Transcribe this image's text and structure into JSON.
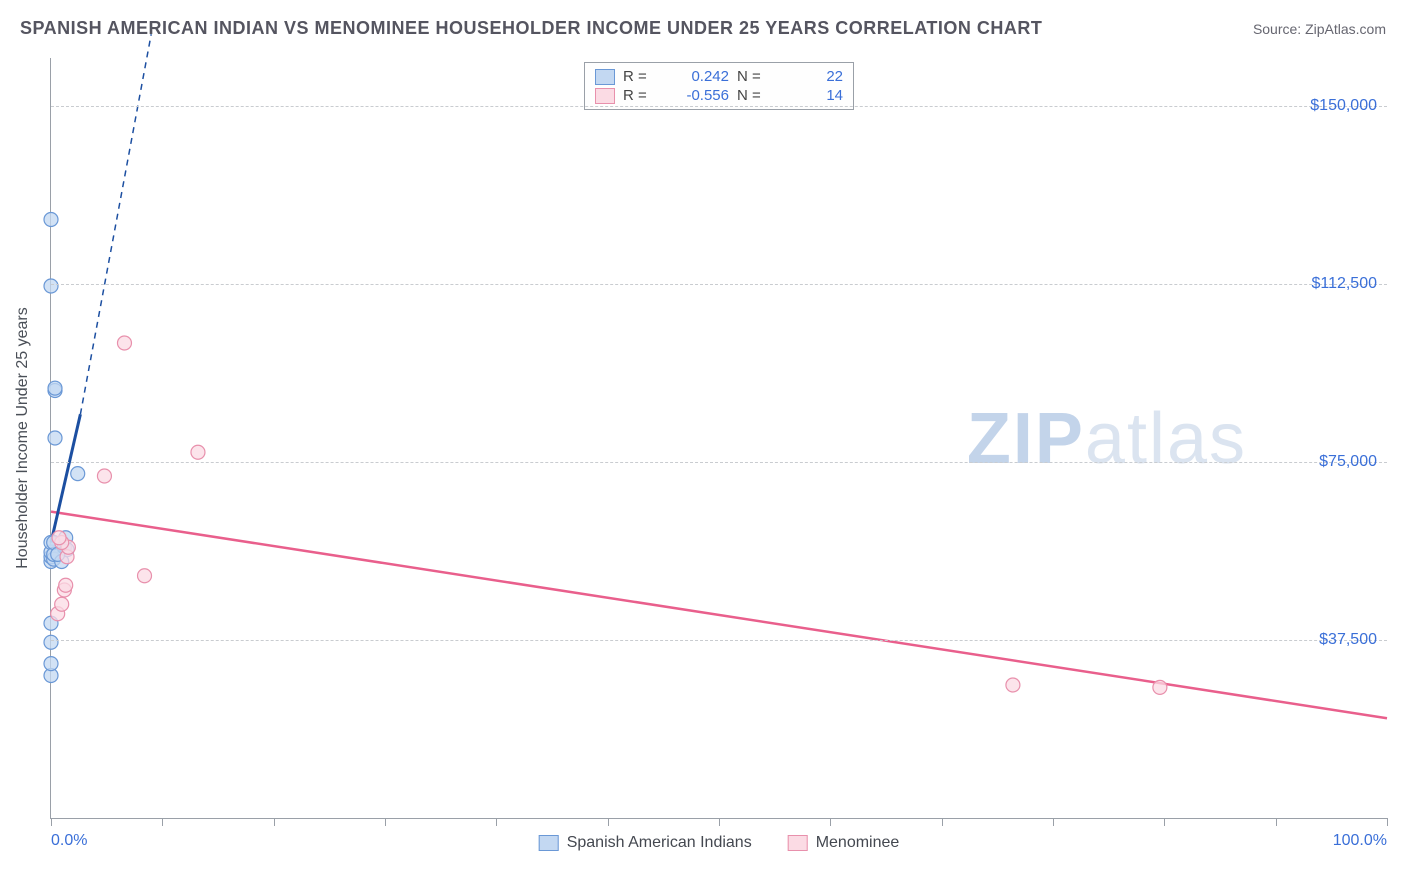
{
  "header": {
    "title": "SPANISH AMERICAN INDIAN VS MENOMINEE HOUSEHOLDER INCOME UNDER 25 YEARS CORRELATION CHART",
    "source_prefix": "Source: ",
    "source": "ZipAtlas.com"
  },
  "chart": {
    "type": "scatter",
    "ylabel": "Householder Income Under 25 years",
    "xlim": [
      0,
      100
    ],
    "ylim": [
      0,
      160000
    ],
    "x_ticks": [
      0,
      8.33,
      16.66,
      25,
      33.33,
      41.66,
      50,
      58.33,
      66.66,
      75,
      83.33,
      91.66,
      100
    ],
    "x_tick_labels": {
      "0": "0.0%",
      "100": "100.0%"
    },
    "y_ticks": [
      37500,
      75000,
      112500,
      150000
    ],
    "y_tick_labels": [
      "$37,500",
      "$75,000",
      "$112,500",
      "$150,000"
    ],
    "grid_color": "#c9ccd0",
    "axis_color": "#9aa0a8",
    "label_color": "#3a6fd8",
    "background": "#ffffff",
    "marker_radius": 7,
    "marker_stroke_width": 1.2,
    "series": {
      "blue": {
        "label": "Spanish American Indians",
        "fill": "#c3d8f2",
        "stroke": "#6a98d6",
        "line_color": "#1c4fa1",
        "r": "0.242",
        "n": "22",
        "points": [
          [
            0.0,
            30000
          ],
          [
            0.0,
            32500
          ],
          [
            0.0,
            37000
          ],
          [
            0.0,
            41000
          ],
          [
            0.0,
            54000
          ],
          [
            0.0,
            55000
          ],
          [
            0.0,
            56000
          ],
          [
            0.0,
            58000
          ],
          [
            0.2,
            54500
          ],
          [
            0.2,
            55500
          ],
          [
            0.2,
            58000
          ],
          [
            0.0,
            112000
          ],
          [
            0.0,
            126000
          ],
          [
            0.3,
            80000
          ],
          [
            0.3,
            90000
          ],
          [
            0.3,
            90500
          ],
          [
            0.8,
            54000
          ],
          [
            1.0,
            57000
          ],
          [
            1.2,
            56500
          ],
          [
            2.0,
            72500
          ],
          [
            1.1,
            59000
          ],
          [
            0.5,
            55500
          ]
        ],
        "trend": {
          "x1": 0.0,
          "y1": 58000,
          "x2": 2.2,
          "y2": 85000,
          "dash_from_x": 2.2,
          "dash_to": [
            7.5,
            165000
          ]
        }
      },
      "pink": {
        "label": "Menominee",
        "fill": "#fbdbe4",
        "stroke": "#e890ac",
        "line_color": "#e95f8c",
        "r": "-0.556",
        "n": "14",
        "points": [
          [
            0.5,
            43000
          ],
          [
            0.8,
            45000
          ],
          [
            1.0,
            48000
          ],
          [
            1.1,
            49000
          ],
          [
            1.2,
            55000
          ],
          [
            1.3,
            57000
          ],
          [
            0.8,
            58000
          ],
          [
            0.6,
            59000
          ],
          [
            4.0,
            72000
          ],
          [
            5.5,
            100000
          ],
          [
            7.0,
            51000
          ],
          [
            11.0,
            77000
          ],
          [
            72.0,
            28000
          ],
          [
            83.0,
            27500
          ]
        ],
        "trend": {
          "x1": 0.0,
          "y1": 64500,
          "x2": 100.0,
          "y2": 21000
        }
      }
    },
    "watermark": {
      "part1": "ZIP",
      "part2": "atlas"
    }
  }
}
